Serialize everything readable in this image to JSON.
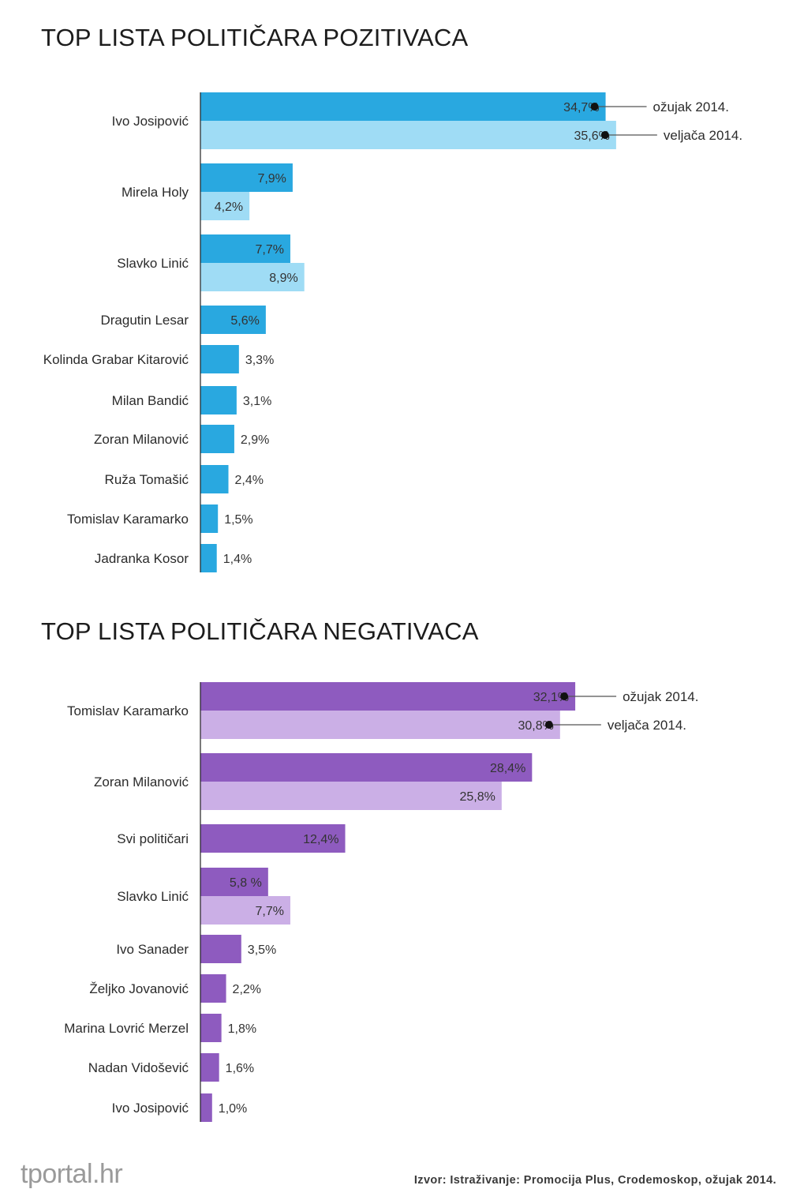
{
  "logo_text": "tportal.hr",
  "source_text": "Izvor: Istraživanje: Promocija Plus, Crodemoskop, ožujak 2014.",
  "colors": {
    "positive_current": "#29a8e0",
    "positive_previous": "#9fdcf5",
    "negative_current": "#8e5bbf",
    "negative_previous": "#cbafe6",
    "legend_line": "#555555",
    "axis": "#222222"
  },
  "chart_data": [
    {
      "type": "bar",
      "orientation": "horizontal",
      "title": "TOP LISTA POLITIČARA POZITIVACA",
      "series_names": [
        "ožujak 2014.",
        "veljača 2014."
      ],
      "categories": [
        "Ivo Josipović",
        "Mirela Holy",
        "Slavko Linić",
        "Dragutin Lesar",
        "Kolinda Grabar Kitarović",
        "Milan Bandić",
        "Zoran Milanović",
        "Ruža Tomašić",
        "Tomislav Karamarko",
        "Jadranka Kosor"
      ],
      "values_current": [
        34.7,
        7.9,
        7.7,
        5.6,
        3.3,
        3.1,
        2.9,
        2.4,
        1.5,
        1.4
      ],
      "labels_current": [
        "34,7%",
        "7,9%",
        "7,7%",
        "5,6%",
        "3,3%",
        "3,1%",
        "2,9%",
        "2,4%",
        "1,5%",
        "1,4%"
      ],
      "values_previous": [
        35.6,
        4.2,
        8.9,
        null,
        null,
        null,
        null,
        null,
        null,
        null
      ],
      "labels_previous": [
        "35,6%",
        "4,2%",
        "8,9%",
        null,
        null,
        null,
        null,
        null,
        null,
        null
      ],
      "legend_placement": "right of first bar pair"
    },
    {
      "type": "bar",
      "orientation": "horizontal",
      "title": "TOP LISTA POLITIČARA NEGATIVACA",
      "series_names": [
        "ožujak 2014.",
        "veljača 2014."
      ],
      "categories": [
        "Tomislav Karamarko",
        "Zoran Milanović",
        "Svi političari",
        "Slavko Linić",
        "Ivo Sanader",
        "Željko Jovanović",
        "Marina Lovrić Merzel",
        "Nadan Vidošević",
        "Ivo Josipović"
      ],
      "values_current": [
        32.1,
        28.4,
        12.4,
        5.8,
        3.5,
        2.2,
        1.8,
        1.6,
        1.0
      ],
      "labels_current": [
        "32,1%",
        "28,4%",
        "12,4%",
        "5,8 %",
        "3,5%",
        "2,2%",
        "1,8%",
        "1,6%",
        "1,0%"
      ],
      "values_previous": [
        30.8,
        25.8,
        null,
        7.7,
        null,
        null,
        null,
        null,
        null
      ],
      "labels_previous": [
        "30,8%",
        "25,8%",
        null,
        "7,7%",
        null,
        null,
        null,
        null,
        null
      ],
      "legend_placement": "right of first bar pair"
    }
  ]
}
